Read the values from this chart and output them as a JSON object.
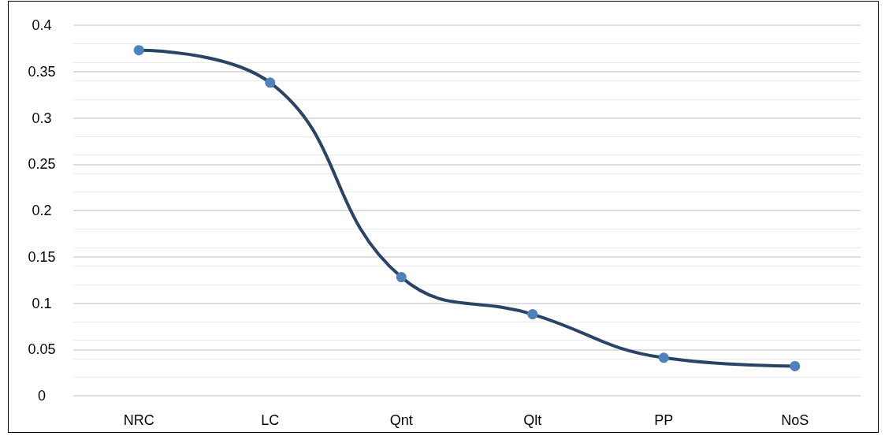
{
  "chart_data": {
    "type": "line",
    "categories": [
      "NRC",
      "LC",
      "Qnt",
      "Qlt",
      "PP",
      "NoS"
    ],
    "series": [
      {
        "color": "#2a4466",
        "values": [
          0.373,
          0.338,
          0.128,
          0.088,
          0.041,
          0.032
        ]
      }
    ],
    "ylim": [
      0,
      0.4
    ],
    "yticks": [
      0,
      0.05,
      0.1,
      0.15,
      0.2,
      0.25,
      0.3,
      0.35,
      0.4
    ],
    "grid": "y",
    "marker": "circle",
    "line_style": "solid"
  }
}
